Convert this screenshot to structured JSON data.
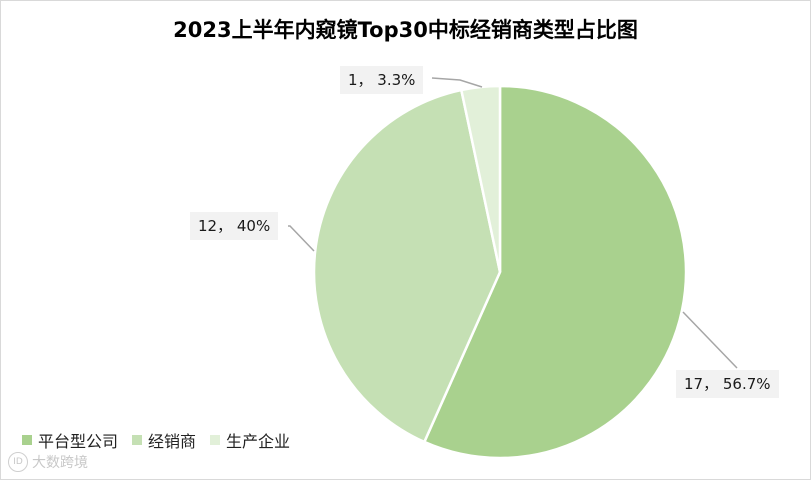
{
  "chart_data": {
    "type": "pie",
    "title": "2023上半年内窥镜Top30中标经销商类型占比图",
    "categories": [
      "平台型公司",
      "经销商",
      "生产企业"
    ],
    "values": [
      17,
      12,
      1
    ],
    "data_labels": [
      "17， 56.7%",
      "12， 40%",
      "1， 3.3%"
    ],
    "colors": [
      "#a9d18e",
      "#c5e0b4",
      "#e2f0d9"
    ],
    "legend_position": "bottom-left"
  },
  "watermark": {
    "text": "大数跨境",
    "logo": "ID"
  }
}
